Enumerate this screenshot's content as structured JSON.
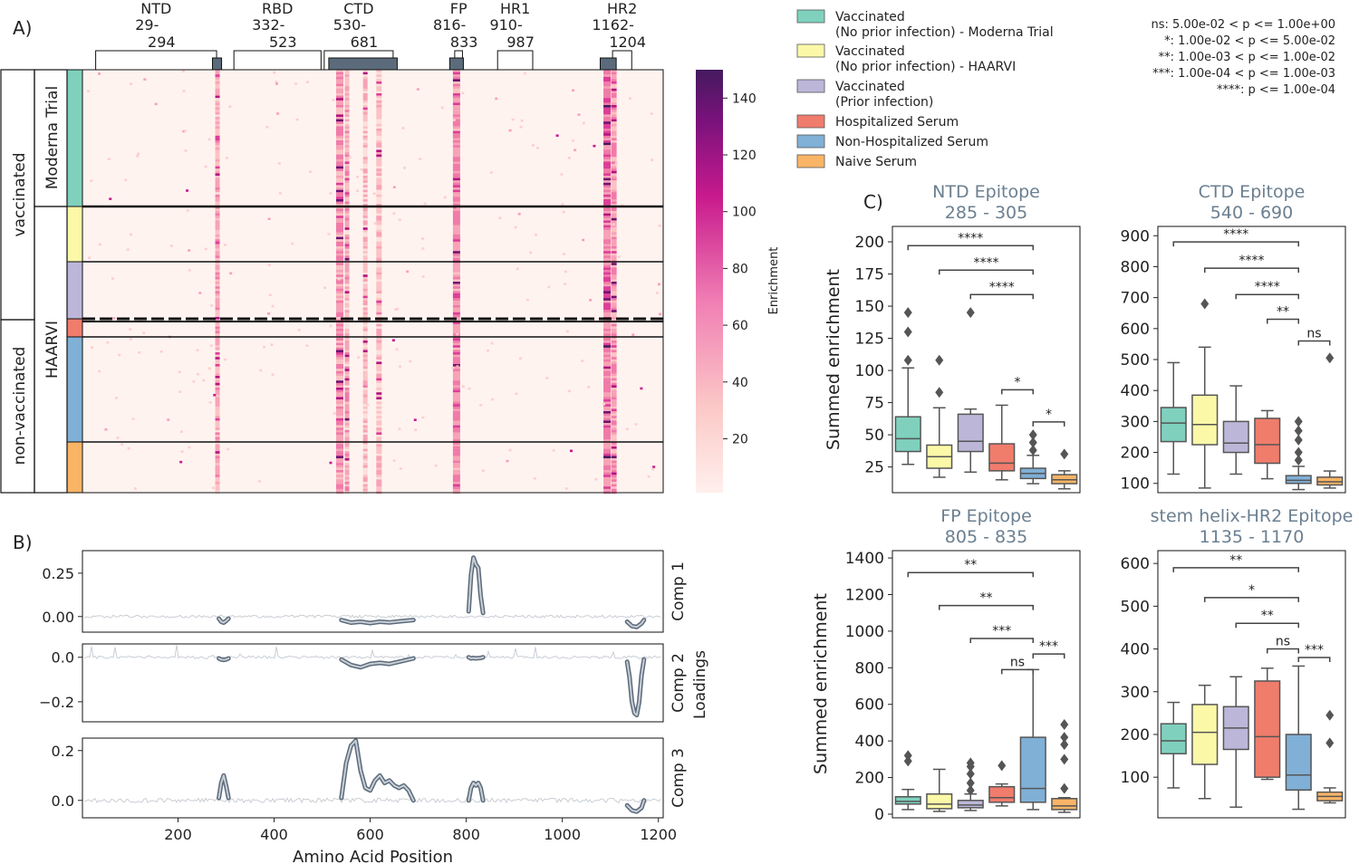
{
  "panel_labels": {
    "a": "A)",
    "b": "B)",
    "c": "C)"
  },
  "heatmap": {
    "domains": [
      {
        "name": "NTD",
        "range_top": "29-",
        "range_bottom": "294",
        "start": 29,
        "end": 294
      },
      {
        "name": "RBD",
        "range_top": "332-",
        "range_bottom": "523",
        "start": 332,
        "end": 523
      },
      {
        "name": "CTD",
        "range_top": "530-",
        "range_bottom": "681",
        "start": 530,
        "end": 681
      },
      {
        "name": "FP",
        "range_top": "816-",
        "range_bottom": "833",
        "start": 816,
        "end": 833
      },
      {
        "name": "HR1",
        "range_top": "910-",
        "range_bottom": "987",
        "start": 910,
        "end": 987
      },
      {
        "name": "HR2",
        "range_top": "1162-",
        "range_bottom": "1204",
        "start": 1162,
        "end": 1204
      }
    ],
    "epitope_regions": [
      {
        "start": 285,
        "end": 305
      },
      {
        "start": 540,
        "end": 690
      },
      {
        "start": 805,
        "end": 835
      },
      {
        "start": 1135,
        "end": 1170
      }
    ],
    "row_labels": {
      "vaccinated": "vaccinated",
      "non_vaccinated": "non-vaccinated",
      "moderna": "Moderna Trial",
      "haarvi": "HAARVI"
    },
    "colorbar": {
      "label": "Enrichment",
      "ticks": [
        20,
        40,
        60,
        80,
        100,
        120,
        140
      ],
      "min": 1,
      "max": 150
    }
  },
  "legend": {
    "groups": [
      {
        "line1": "Vaccinated",
        "line2": "(No prior infection) - Moderna Trial",
        "color": "#7fd1bd"
      },
      {
        "line1": "Vaccinated",
        "line2": "(No prior infection) - HAARVI",
        "color": "#fbf8a8"
      },
      {
        "line1": "Vaccinated",
        "line2": "(Prior infection)",
        "color": "#bcb7d9"
      },
      {
        "line1": "Hospitalized Serum",
        "line2": "",
        "color": "#f07c6c"
      },
      {
        "line1": "Non-Hospitalized Serum",
        "line2": "",
        "color": "#80b0d6"
      },
      {
        "line1": "Naive Serum",
        "line2": "",
        "color": "#f9b466"
      }
    ],
    "significance": [
      "ns: 5.00e-02 < p <= 1.00e+00",
      "*: 1.00e-02 < p <= 5.00e-02",
      "**: 1.00e-03 < p <= 1.00e-02",
      "***: 1.00e-04 < p <= 1.00e-03",
      "****: p <= 1.00e-04"
    ]
  },
  "chart_data": [
    {
      "type": "line",
      "panel": "B",
      "xlabel": "Amino Acid Position",
      "ylabel": "Loadings",
      "xlim": [
        1,
        1210
      ],
      "xticks": [
        200,
        400,
        600,
        800,
        1000,
        1200
      ],
      "components": [
        {
          "name": "Comp 1",
          "ylim": [
            -0.09,
            0.38
          ],
          "yticks": [
            0.0,
            0.25
          ],
          "ytick_labels": [
            "0.00",
            "0.25"
          ],
          "highlights": [
            {
              "x": [
                285,
                290,
                295,
                300,
                305
              ],
              "y": [
                -0.012,
                -0.03,
                -0.035,
                -0.025,
                -0.012
              ]
            },
            {
              "x": [
                540,
                560,
                580,
                600,
                620,
                640,
                660,
                690
              ],
              "y": [
                -0.02,
                -0.035,
                -0.03,
                -0.038,
                -0.03,
                -0.034,
                -0.028,
                -0.02
              ]
            },
            {
              "x": [
                805,
                810,
                815,
                820,
                825,
                830,
                835
              ],
              "y": [
                0.03,
                0.24,
                0.34,
                0.3,
                0.28,
                0.12,
                0.02
              ]
            },
            {
              "x": [
                1135,
                1145,
                1155,
                1165,
                1170
              ],
              "y": [
                -0.03,
                -0.055,
                -0.06,
                -0.04,
                -0.02
              ]
            }
          ]
        },
        {
          "name": "Comp 2",
          "ylim": [
            -0.29,
            0.06
          ],
          "yticks": [
            0.0,
            -0.2
          ],
          "ytick_labels": [
            "0.0",
            "−0.2"
          ],
          "highlights": [
            {
              "x": [
                285,
                290,
                295,
                300,
                305
              ],
              "y": [
                -0.005,
                -0.01,
                -0.012,
                -0.01,
                -0.005
              ]
            },
            {
              "x": [
                540,
                560,
                580,
                600,
                620,
                640,
                660,
                690
              ],
              "y": [
                -0.01,
                -0.035,
                -0.045,
                -0.03,
                -0.025,
                -0.03,
                -0.02,
                -0.005
              ]
            },
            {
              "x": [
                805,
                810,
                815,
                820,
                825,
                830,
                835
              ],
              "y": [
                0.0,
                -0.005,
                -0.003,
                -0.005,
                -0.004,
                -0.003,
                0.0
              ]
            },
            {
              "x": [
                1135,
                1140,
                1145,
                1150,
                1155,
                1160,
                1165,
                1170
              ],
              "y": [
                -0.02,
                -0.09,
                -0.2,
                -0.25,
                -0.26,
                -0.2,
                -0.08,
                -0.01
              ]
            }
          ]
        },
        {
          "name": "Comp 3",
          "ylim": [
            -0.07,
            0.25
          ],
          "yticks": [
            0.0,
            0.2
          ],
          "ytick_labels": [
            "0.0",
            "0.2"
          ],
          "highlights": [
            {
              "x": [
                285,
                290,
                295,
                300,
                305
              ],
              "y": [
                0.01,
                0.07,
                0.1,
                0.06,
                0.01
              ]
            },
            {
              "x": [
                540,
                550,
                560,
                570,
                580,
                590,
                600,
                610,
                620,
                630,
                640,
                650,
                660,
                670,
                680,
                690
              ],
              "y": [
                0.01,
                0.15,
                0.22,
                0.24,
                0.12,
                0.05,
                0.04,
                0.08,
                0.1,
                0.07,
                0.08,
                0.06,
                0.05,
                0.06,
                0.04,
                0.0
              ]
            },
            {
              "x": [
                805,
                810,
                815,
                820,
                825,
                830,
                835
              ],
              "y": [
                0.0,
                0.05,
                0.07,
                0.06,
                0.07,
                0.05,
                0.0
              ]
            },
            {
              "x": [
                1135,
                1145,
                1155,
                1165,
                1170
              ],
              "y": [
                -0.02,
                -0.04,
                -0.045,
                -0.03,
                0.0
              ]
            }
          ]
        }
      ]
    },
    {
      "type": "box",
      "panel": "C",
      "ylabel": "Summed enrichment",
      "groups": [
        "Vaccinated (No prior infection) - Moderna Trial",
        "Vaccinated (No prior infection) - HAARVI",
        "Vaccinated (Prior infection)",
        "Hospitalized Serum",
        "Non-Hospitalized Serum",
        "Naive Serum"
      ],
      "subplots": [
        {
          "title": "NTD Epitope",
          "subtitle": "285 - 305",
          "ylim": [
            5,
            212
          ],
          "yticks": [
            25,
            50,
            75,
            100,
            125,
            150,
            175,
            200
          ],
          "boxes": [
            {
              "q1": 37,
              "median": 47,
              "q3": 64,
              "whisker_low": 27,
              "whisker_high": 102,
              "outliers": [
                108,
                130,
                145
              ]
            },
            {
              "q1": 24,
              "median": 33,
              "q3": 42,
              "whisker_low": 17,
              "whisker_high": 71,
              "outliers": [
                83,
                108
              ]
            },
            {
              "q1": 37,
              "median": 45,
              "q3": 66,
              "whisker_low": 21,
              "whisker_high": 70,
              "outliers": [
                145
              ]
            },
            {
              "q1": 22,
              "median": 28,
              "q3": 43,
              "whisker_low": 15,
              "whisker_high": 73,
              "outliers": []
            },
            {
              "q1": 16,
              "median": 20,
              "q3": 24,
              "whisker_low": 12,
              "whisker_high": 34,
              "outliers": [
                38,
                44,
                50
              ]
            },
            {
              "q1": 12,
              "median": 15,
              "q3": 19,
              "whisker_low": 8,
              "whisker_high": 22,
              "outliers": [
                35
              ]
            }
          ],
          "comparisons": [
            {
              "from": 0,
              "to": 4,
              "value": 197,
              "label": "****"
            },
            {
              "from": 1,
              "to": 4,
              "value": 178,
              "label": "****"
            },
            {
              "from": 2,
              "to": 4,
              "value": 159,
              "label": "****"
            },
            {
              "from": 3,
              "to": 4,
              "value": 85,
              "label": "*"
            },
            {
              "from": 4,
              "to": 5,
              "value": 60,
              "label": "*"
            }
          ]
        },
        {
          "title": "CTD Epitope",
          "subtitle": "540 - 690",
          "ylim": [
            70,
            930
          ],
          "yticks": [
            100,
            200,
            300,
            400,
            500,
            600,
            700,
            800,
            900
          ],
          "boxes": [
            {
              "q1": 235,
              "median": 295,
              "q3": 345,
              "whisker_low": 130,
              "whisker_high": 490,
              "outliers": []
            },
            {
              "q1": 225,
              "median": 290,
              "q3": 385,
              "whisker_low": 85,
              "whisker_high": 540,
              "outliers": [
                680
              ]
            },
            {
              "q1": 200,
              "median": 230,
              "q3": 300,
              "whisker_low": 130,
              "whisker_high": 415,
              "outliers": []
            },
            {
              "q1": 165,
              "median": 225,
              "q3": 310,
              "whisker_low": 115,
              "whisker_high": 335,
              "outliers": []
            },
            {
              "q1": 100,
              "median": 110,
              "q3": 125,
              "whisker_low": 80,
              "whisker_high": 155,
              "outliers": [
                175,
                200,
                240,
                270,
                300
              ]
            },
            {
              "q1": 95,
              "median": 105,
              "q3": 120,
              "whisker_low": 85,
              "whisker_high": 140,
              "outliers": [
                505
              ]
            }
          ],
          "comparisons": [
            {
              "from": 0,
              "to": 4,
              "value": 880,
              "label": "****"
            },
            {
              "from": 1,
              "to": 4,
              "value": 795,
              "label": "****"
            },
            {
              "from": 2,
              "to": 4,
              "value": 710,
              "label": "****"
            },
            {
              "from": 3,
              "to": 4,
              "value": 630,
              "label": "**"
            },
            {
              "from": 4,
              "to": 5,
              "value": 560,
              "label": "ns"
            }
          ]
        },
        {
          "title": "FP Epitope",
          "subtitle": "805 - 835",
          "ylim": [
            -20,
            1440
          ],
          "yticks": [
            0,
            200,
            400,
            600,
            800,
            1000,
            1200,
            1400
          ],
          "boxes": [
            {
              "q1": 55,
              "median": 70,
              "q3": 95,
              "whisker_low": 25,
              "whisker_high": 135,
              "outliers": [
                290,
                320
              ]
            },
            {
              "q1": 30,
              "median": 55,
              "q3": 110,
              "whisker_low": 15,
              "whisker_high": 245,
              "outliers": []
            },
            {
              "q1": 35,
              "median": 50,
              "q3": 75,
              "whisker_low": 20,
              "whisker_high": 110,
              "outliers": [
                130,
                170,
                220,
                260,
                280
              ]
            },
            {
              "q1": 65,
              "median": 90,
              "q3": 150,
              "whisker_low": 45,
              "whisker_high": 165,
              "outliers": [
                265
              ]
            },
            {
              "q1": 65,
              "median": 140,
              "q3": 420,
              "whisker_low": 25,
              "whisker_high": 790,
              "outliers": []
            },
            {
              "q1": 25,
              "median": 45,
              "q3": 85,
              "whisker_low": 10,
              "whisker_high": 90,
              "outliers": [
                140,
                300,
                380,
                420,
                490
              ]
            }
          ],
          "comparisons": [
            {
              "from": 0,
              "to": 4,
              "value": 1320,
              "label": "**"
            },
            {
              "from": 1,
              "to": 4,
              "value": 1140,
              "label": "**"
            },
            {
              "from": 2,
              "to": 4,
              "value": 960,
              "label": "***"
            },
            {
              "from": 3,
              "to": 4,
              "value": 790,
              "label": "ns"
            },
            {
              "from": 4,
              "to": 5,
              "value": 875,
              "label": "***"
            }
          ]
        },
        {
          "title": "stem helix-HR2 Epitope",
          "subtitle": "1135 - 1170",
          "ylim": [
            5,
            630
          ],
          "yticks": [
            100,
            200,
            300,
            400,
            500,
            600
          ],
          "boxes": [
            {
              "q1": 155,
              "median": 185,
              "q3": 225,
              "whisker_low": 75,
              "whisker_high": 275,
              "outliers": []
            },
            {
              "q1": 130,
              "median": 205,
              "q3": 270,
              "whisker_low": 50,
              "whisker_high": 315,
              "outliers": []
            },
            {
              "q1": 165,
              "median": 215,
              "q3": 265,
              "whisker_low": 30,
              "whisker_high": 335,
              "outliers": []
            },
            {
              "q1": 100,
              "median": 195,
              "q3": 325,
              "whisker_low": 95,
              "whisker_high": 355,
              "outliers": []
            },
            {
              "q1": 70,
              "median": 105,
              "q3": 200,
              "whisker_low": 25,
              "whisker_high": 360,
              "outliers": []
            },
            {
              "q1": 45,
              "median": 55,
              "q3": 65,
              "whisker_low": 40,
              "whisker_high": 75,
              "outliers": [
                180,
                245
              ]
            }
          ],
          "comparisons": [
            {
              "from": 0,
              "to": 4,
              "value": 590,
              "label": "**"
            },
            {
              "from": 1,
              "to": 4,
              "value": 520,
              "label": "*"
            },
            {
              "from": 2,
              "to": 4,
              "value": 460,
              "label": "**"
            },
            {
              "from": 3,
              "to": 4,
              "value": 400,
              "label": "ns"
            },
            {
              "from": 4,
              "to": 5,
              "value": 380,
              "label": "***"
            }
          ]
        }
      ]
    }
  ]
}
